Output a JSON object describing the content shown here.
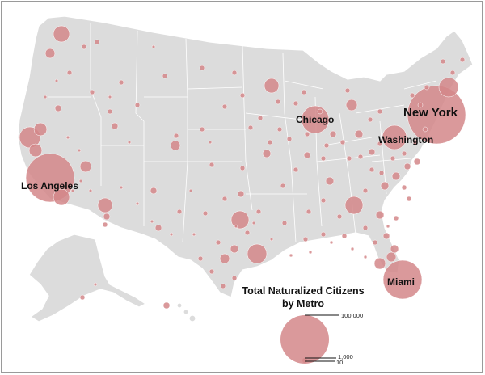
{
  "map": {
    "legend": {
      "title_line1": "Total Naturalized Citizens",
      "title_line2": "by Metro",
      "scale_values": [
        "100,000",
        "1,000",
        "10"
      ],
      "bubble_color": "#d4878a"
    },
    "labeled_metros": [
      {
        "name": "New York",
        "font_size": 15
      },
      {
        "name": "Los Angeles",
        "font_size": 12
      },
      {
        "name": "Chicago",
        "font_size": 12
      },
      {
        "name": "Washington",
        "font_size": 12
      },
      {
        "name": "Miami",
        "font_size": 12
      }
    ],
    "colors": {
      "land": "#dcdcdc",
      "borders": "#ffffff",
      "bubbles": "#d4878a",
      "background": "#ffffff"
    }
  }
}
